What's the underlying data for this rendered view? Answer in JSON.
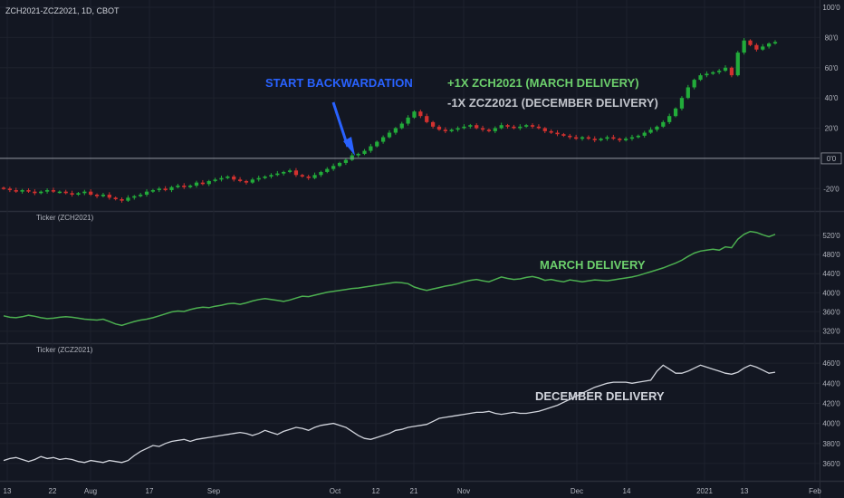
{
  "header": {
    "symbol": "ZCH2021-ZCZ2021, 1D, CBOT"
  },
  "colors": {
    "background": "#131722",
    "up": "#26a69a",
    "up_candle": "#22ab3a",
    "down": "#d1312f",
    "march_line": "#4caf50",
    "december_line": "#d1d4dc",
    "annotation_blue": "#2962ff",
    "annotation_green": "#6ccf6c",
    "annotation_gray": "#c2c5cc",
    "grid": "#1e222d",
    "axis_text": "#b2b5be"
  },
  "annotations": {
    "start_backwardation": "START BACKWARDATION",
    "long_leg": "+1X ZCH2021 (MARCH DELIVERY)",
    "short_leg": "-1X ZCZ2021 (DECEMBER DELIVERY)",
    "march_delivery": "MARCH DELIVERY",
    "december_delivery": "DECEMBER DELIVERY"
  },
  "x_axis": {
    "tick_labels": [
      "13",
      "22",
      "Aug",
      "17",
      "Sep",
      "Oct",
      "12",
      "21",
      "Nov",
      "Dec",
      "14",
      "2021",
      "13",
      "Feb"
    ]
  },
  "chart_data": [
    {
      "type": "candlestick",
      "title": "ZCH2021-ZCZ2021, 1D, CBOT",
      "ylim": [
        -30,
        100
      ],
      "y_tick_labels": [
        "100'0",
        "80'0",
        "60'0",
        "40'0",
        "20'0",
        "0'0",
        "-20'0"
      ],
      "y_ticks": [
        100,
        80,
        60,
        40,
        20,
        0,
        -20
      ],
      "reference_line": 0,
      "reference_label": "0'0",
      "values": [
        -20,
        -21,
        -22,
        -21,
        -22,
        -23,
        -22,
        -21,
        -22,
        -22,
        -23,
        -24,
        -23,
        -22,
        -24,
        -25,
        -24,
        -26,
        -27,
        -28,
        -26,
        -25,
        -24,
        -22,
        -21,
        -20,
        -21,
        -19,
        -18,
        -19,
        -18,
        -16,
        -17,
        -15,
        -14,
        -13,
        -12,
        -14,
        -15,
        -16,
        -14,
        -13,
        -12,
        -11,
        -10,
        -9,
        -8,
        -11,
        -12,
        -13,
        -11,
        -9,
        -7,
        -5,
        -3,
        -1,
        2,
        3,
        5,
        8,
        11,
        14,
        17,
        20,
        23,
        27,
        31,
        28,
        24,
        21,
        19,
        18,
        19,
        20,
        21,
        22,
        20,
        19,
        18,
        20,
        22,
        21,
        20,
        21,
        22,
        21,
        20,
        18,
        17,
        16,
        15,
        14,
        13,
        14,
        13,
        12,
        13,
        14,
        13,
        12,
        13,
        14,
        15,
        17,
        19,
        21,
        24,
        28,
        33,
        40,
        47,
        52,
        55,
        56,
        57,
        58,
        60,
        55,
        70,
        78,
        75,
        72,
        74,
        76,
        77
      ],
      "series": [
        {
          "name": "ZCH2021-ZCZ2021"
        }
      ]
    },
    {
      "type": "line",
      "title": "Ticker (ZCH2021)",
      "ylim": [
        310,
        550
      ],
      "y_tick_labels": [
        "520'0",
        "480'0",
        "440'0",
        "400'0",
        "360'0",
        "320'0"
      ],
      "y_ticks": [
        520,
        480,
        440,
        400,
        360,
        320
      ],
      "values": [
        352,
        349,
        348,
        350,
        353,
        351,
        348,
        346,
        347,
        349,
        350,
        349,
        347,
        345,
        344,
        343,
        345,
        340,
        335,
        332,
        336,
        340,
        343,
        345,
        348,
        352,
        356,
        360,
        362,
        361,
        365,
        368,
        370,
        369,
        372,
        374,
        377,
        378,
        376,
        379,
        383,
        386,
        388,
        386,
        384,
        382,
        385,
        389,
        393,
        392,
        395,
        398,
        401,
        403,
        405,
        407,
        409,
        410,
        412,
        414,
        416,
        418,
        420,
        422,
        421,
        419,
        412,
        408,
        405,
        408,
        411,
        414,
        416,
        419,
        423,
        426,
        428,
        425,
        423,
        428,
        433,
        430,
        428,
        429,
        432,
        434,
        431,
        426,
        428,
        425,
        423,
        427,
        425,
        423,
        425,
        427,
        426,
        425,
        427,
        429,
        431,
        433,
        436,
        440,
        444,
        448,
        452,
        457,
        462,
        468,
        476,
        483,
        487,
        489,
        491,
        489,
        496,
        494,
        512,
        522,
        528,
        526,
        521,
        517,
        522
      ],
      "series": [
        {
          "name": "MARCH DELIVERY"
        }
      ]
    },
    {
      "type": "line",
      "title": "Ticker (ZCZ2021)",
      "ylim": [
        350,
        470
      ],
      "y_tick_labels": [
        "460'0",
        "440'0",
        "420'0",
        "400'0",
        "380'0",
        "360'0"
      ],
      "y_ticks": [
        460,
        440,
        420,
        400,
        380,
        360
      ],
      "values": [
        363,
        365,
        366,
        364,
        362,
        364,
        367,
        365,
        366,
        364,
        365,
        364,
        362,
        361,
        363,
        362,
        361,
        363,
        362,
        361,
        363,
        368,
        372,
        375,
        378,
        377,
        380,
        382,
        383,
        384,
        382,
        384,
        385,
        386,
        387,
        388,
        389,
        390,
        391,
        390,
        388,
        390,
        393,
        391,
        389,
        392,
        394,
        396,
        395,
        393,
        396,
        398,
        399,
        400,
        398,
        396,
        392,
        388,
        385,
        384,
        386,
        388,
        390,
        393,
        394,
        396,
        397,
        398,
        399,
        402,
        405,
        406,
        407,
        408,
        409,
        410,
        411,
        411,
        412,
        410,
        409,
        410,
        411,
        410,
        410,
        411,
        412,
        414,
        416,
        418,
        421,
        424,
        427,
        430,
        433,
        436,
        438,
        440,
        441,
        441,
        441,
        440,
        441,
        442,
        443,
        452,
        458,
        454,
        450,
        450,
        452,
        455,
        458,
        456,
        454,
        452,
        450,
        449,
        451,
        455,
        458,
        456,
        453,
        450,
        451
      ],
      "series": [
        {
          "name": "DECEMBER DELIVERY"
        }
      ]
    }
  ]
}
